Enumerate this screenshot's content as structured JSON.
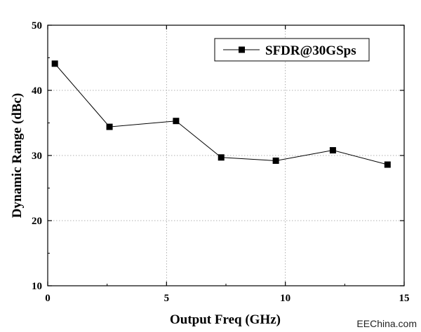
{
  "chart_data": {
    "type": "line",
    "xlabel": "Output Freq (GHz)",
    "ylabel": "Dynamic Range (dBc)",
    "xlim": [
      0,
      15
    ],
    "ylim": [
      10,
      50
    ],
    "xticks": [
      0,
      5,
      10,
      15
    ],
    "yticks": [
      10,
      20,
      30,
      40,
      50
    ],
    "grid": "dotted",
    "legend": "top-right",
    "series": [
      {
        "name": "SFDR@30GSps",
        "marker": "square",
        "color": "#000000",
        "x": [
          0.3,
          2.6,
          5.4,
          7.3,
          9.6,
          12.0,
          14.3
        ],
        "y": [
          44.1,
          34.4,
          35.3,
          29.7,
          29.2,
          30.8,
          28.6
        ]
      }
    ]
  },
  "watermark": "EEChina.com"
}
